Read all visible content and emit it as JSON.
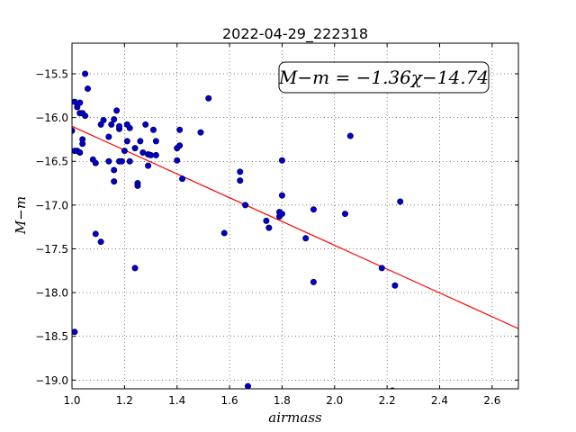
{
  "chart_data": {
    "type": "scatter",
    "title": "2022-04-29_222318",
    "xlabel": "airmass",
    "ylabel": "M−m",
    "xlim": [
      1.0,
      2.7
    ],
    "ylim": [
      -19.1,
      -15.15
    ],
    "y_inverted": true,
    "grid": true,
    "xticks": [
      "1.0",
      "1.2",
      "1.4",
      "1.6",
      "1.8",
      "2.0",
      "2.2",
      "2.4",
      "2.6"
    ],
    "yticks": [
      "−15.5",
      "−16.0",
      "−16.5",
      "−17.0",
      "−17.5",
      "−18.0",
      "−18.5",
      "−19.0"
    ],
    "annotation": "M−m = −1.36χ−14.74",
    "fit": {
      "slope": -1.36,
      "intercept": -14.74,
      "color": "#ff0000"
    },
    "point_color": "#0000cc",
    "x": [
      1.0,
      1.01,
      1.02,
      1.02,
      1.03,
      1.03,
      1.04,
      1.04,
      1.05,
      1.05,
      1.06,
      1.01,
      1.03,
      1.04,
      1.08,
      1.09,
      1.09,
      1.11,
      1.12,
      1.14,
      1.14,
      1.15,
      1.16,
      1.16,
      1.17,
      1.18,
      1.18,
      1.18,
      1.19,
      1.2,
      1.21,
      1.21,
      1.22,
      1.22,
      1.24,
      1.25,
      1.25,
      1.26,
      1.27,
      1.28,
      1.29,
      1.29,
      1.3,
      1.31,
      1.32,
      1.32,
      1.4,
      1.4,
      1.41,
      1.41,
      1.42,
      1.49,
      1.52,
      1.58,
      1.64,
      1.64,
      1.66,
      1.74,
      1.75,
      1.79,
      1.79,
      1.8,
      1.8,
      1.8,
      1.89,
      1.92,
      1.92,
      2.04,
      2.06,
      2.18,
      2.23,
      2.25,
      1.16,
      1.11,
      1.24,
      1.01,
      1.67,
      2.22
    ],
    "y": [
      -16.15,
      -15.82,
      -15.88,
      -16.38,
      -15.95,
      -15.83,
      -16.3,
      -16.25,
      -15.5,
      -15.98,
      -15.67,
      -16.38,
      -16.4,
      -15.95,
      -16.48,
      -16.52,
      -17.33,
      -16.08,
      -16.03,
      -16.22,
      -16.5,
      -16.08,
      -16.02,
      -16.6,
      -15.92,
      -16.13,
      -16.5,
      -16.1,
      -16.5,
      -16.38,
      -16.27,
      -16.08,
      -16.12,
      -16.5,
      -16.35,
      -16.75,
      -16.78,
      -16.27,
      -16.4,
      -16.08,
      -16.55,
      -16.42,
      -16.43,
      -16.14,
      -16.27,
      -16.43,
      -16.35,
      -16.49,
      -16.32,
      -16.14,
      -16.7,
      -16.17,
      -15.78,
      -17.32,
      -16.62,
      -16.72,
      -17.0,
      -17.18,
      -17.26,
      -17.13,
      -17.08,
      -16.49,
      -16.89,
      -17.1,
      -17.38,
      -17.05,
      -17.88,
      -17.1,
      -16.21,
      -17.72,
      -17.92,
      -16.96,
      -16.73,
      -17.42,
      -17.72,
      -18.45,
      -19.07,
      -19.12
    ]
  }
}
